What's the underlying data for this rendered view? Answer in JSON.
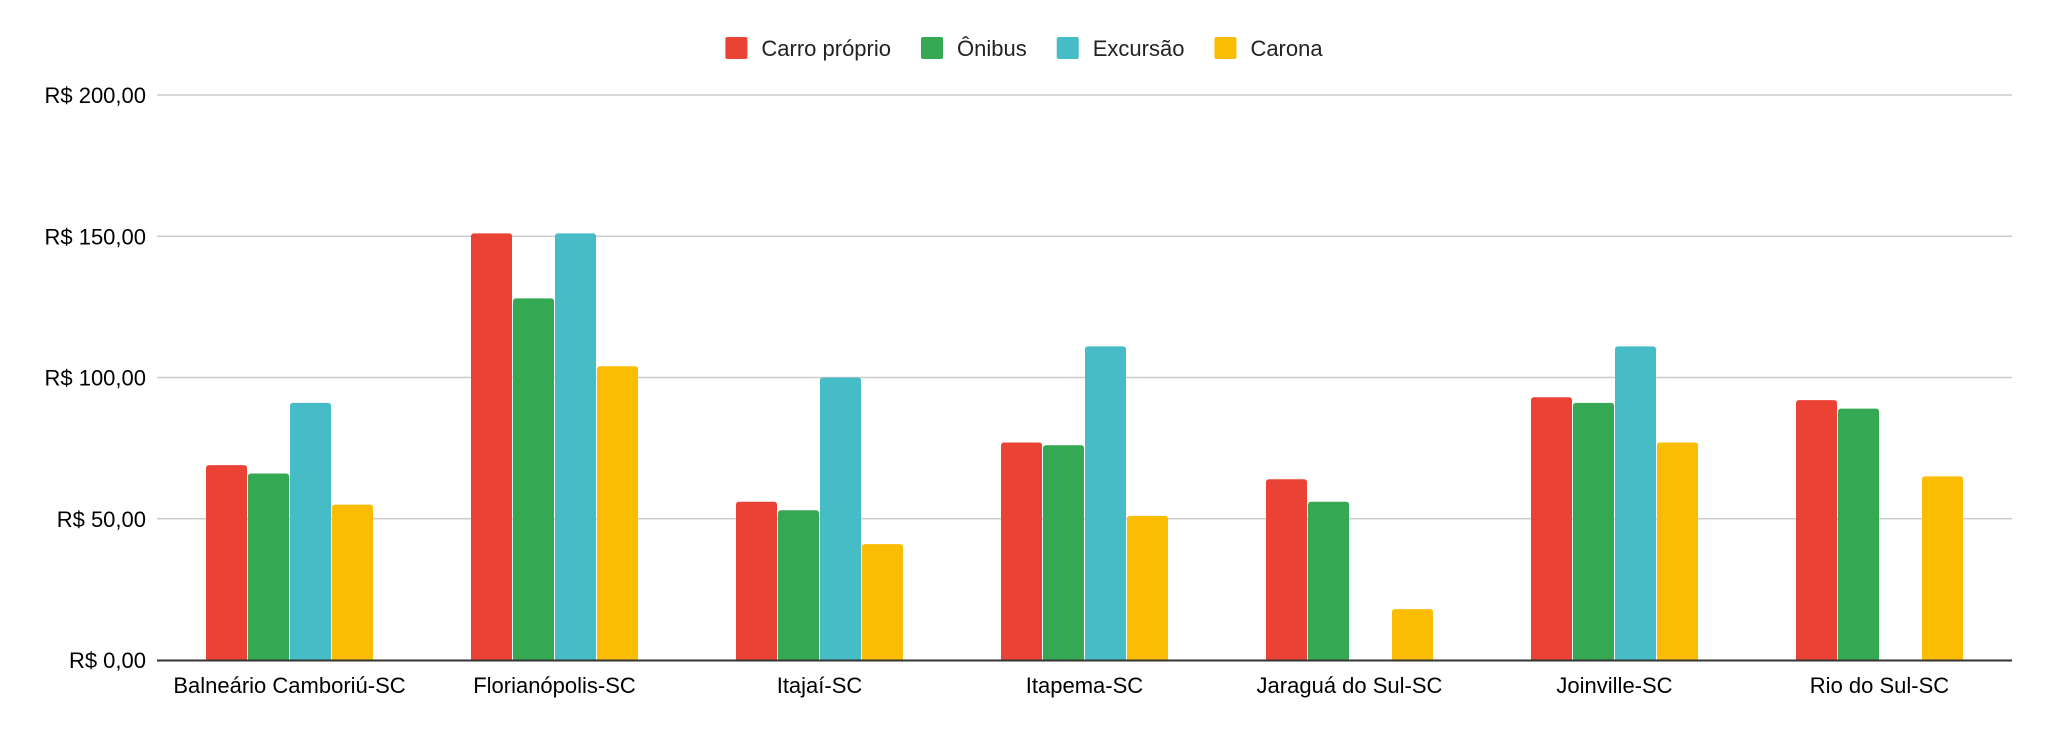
{
  "chart_data": {
    "type": "bar",
    "categories": [
      "Balneário Camboriú-SC",
      "Florianópolis-SC",
      "Itajaí-SC",
      "Itapema-SC",
      "Jaraguá do Sul-SC",
      "Joinville-SC",
      "Rio do Sul-SC"
    ],
    "series": [
      {
        "name": "Carro próprio",
        "color": "#EA4335",
        "values": [
          69,
          151,
          56,
          77,
          64,
          93,
          92
        ]
      },
      {
        "name": "Ônibus",
        "color": "#34A853",
        "values": [
          66,
          128,
          53,
          76,
          56,
          91,
          89
        ]
      },
      {
        "name": "Excursão",
        "color": "#46BDC6",
        "values": [
          91,
          151,
          100,
          111,
          null,
          111,
          null
        ]
      },
      {
        "name": "Carona",
        "color": "#FBBC04",
        "values": [
          55,
          104,
          41,
          51,
          18,
          77,
          65
        ]
      }
    ],
    "y_ticks": [
      "R$ 0,00",
      "R$ 50,00",
      "R$ 100,00",
      "R$ 150,00",
      "R$ 200,00"
    ],
    "ylim": [
      0,
      200
    ],
    "grid": true,
    "legend_position": "top-center"
  }
}
